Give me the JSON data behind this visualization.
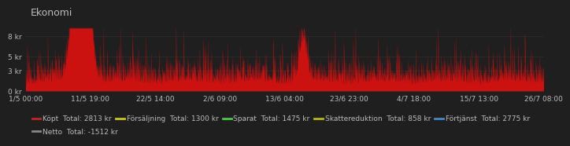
{
  "title": "Ekonomi",
  "background_color": "#1f1f1f",
  "plot_bg_color": "#1f1f1f",
  "x_labels": [
    "1/5 00:00",
    "11/5 19:00",
    "22/5 14:00",
    "2/6 09:00",
    "13/6 04:00",
    "23/6 23:00",
    "4/7 18:00",
    "15/7 13:00",
    "26/7 08:00"
  ],
  "y_labels": [
    "0 kr",
    "3 kr",
    "5 kr",
    "8 kr"
  ],
  "y_ticks": [
    0,
    3,
    5,
    8
  ],
  "ylim": [
    0,
    9.5
  ],
  "bar_color": "#cc1111",
  "legend_row1": [
    {
      "label": "Köpt  Total: 2813 kr",
      "color": "#cc2222"
    },
    {
      "label": "Försäljning  Total: 1300 kr",
      "color": "#cccc00"
    },
    {
      "label": "Sparat  Total: 1475 kr",
      "color": "#44cc44"
    },
    {
      "label": "Skattereduktion  Total: 858 kr",
      "color": "#bbbb00"
    },
    {
      "label": "Förtjänst  Total: 2775 kr",
      "color": "#4488cc"
    }
  ],
  "legend_row2": [
    {
      "label": "Netto  Total: -1512 kr",
      "color": "#888888"
    }
  ],
  "grid_color": "#2e2e2e",
  "text_color": "#bbbbbb",
  "title_fontsize": 9,
  "tick_fontsize": 6.5,
  "legend_fontsize": 6.5
}
